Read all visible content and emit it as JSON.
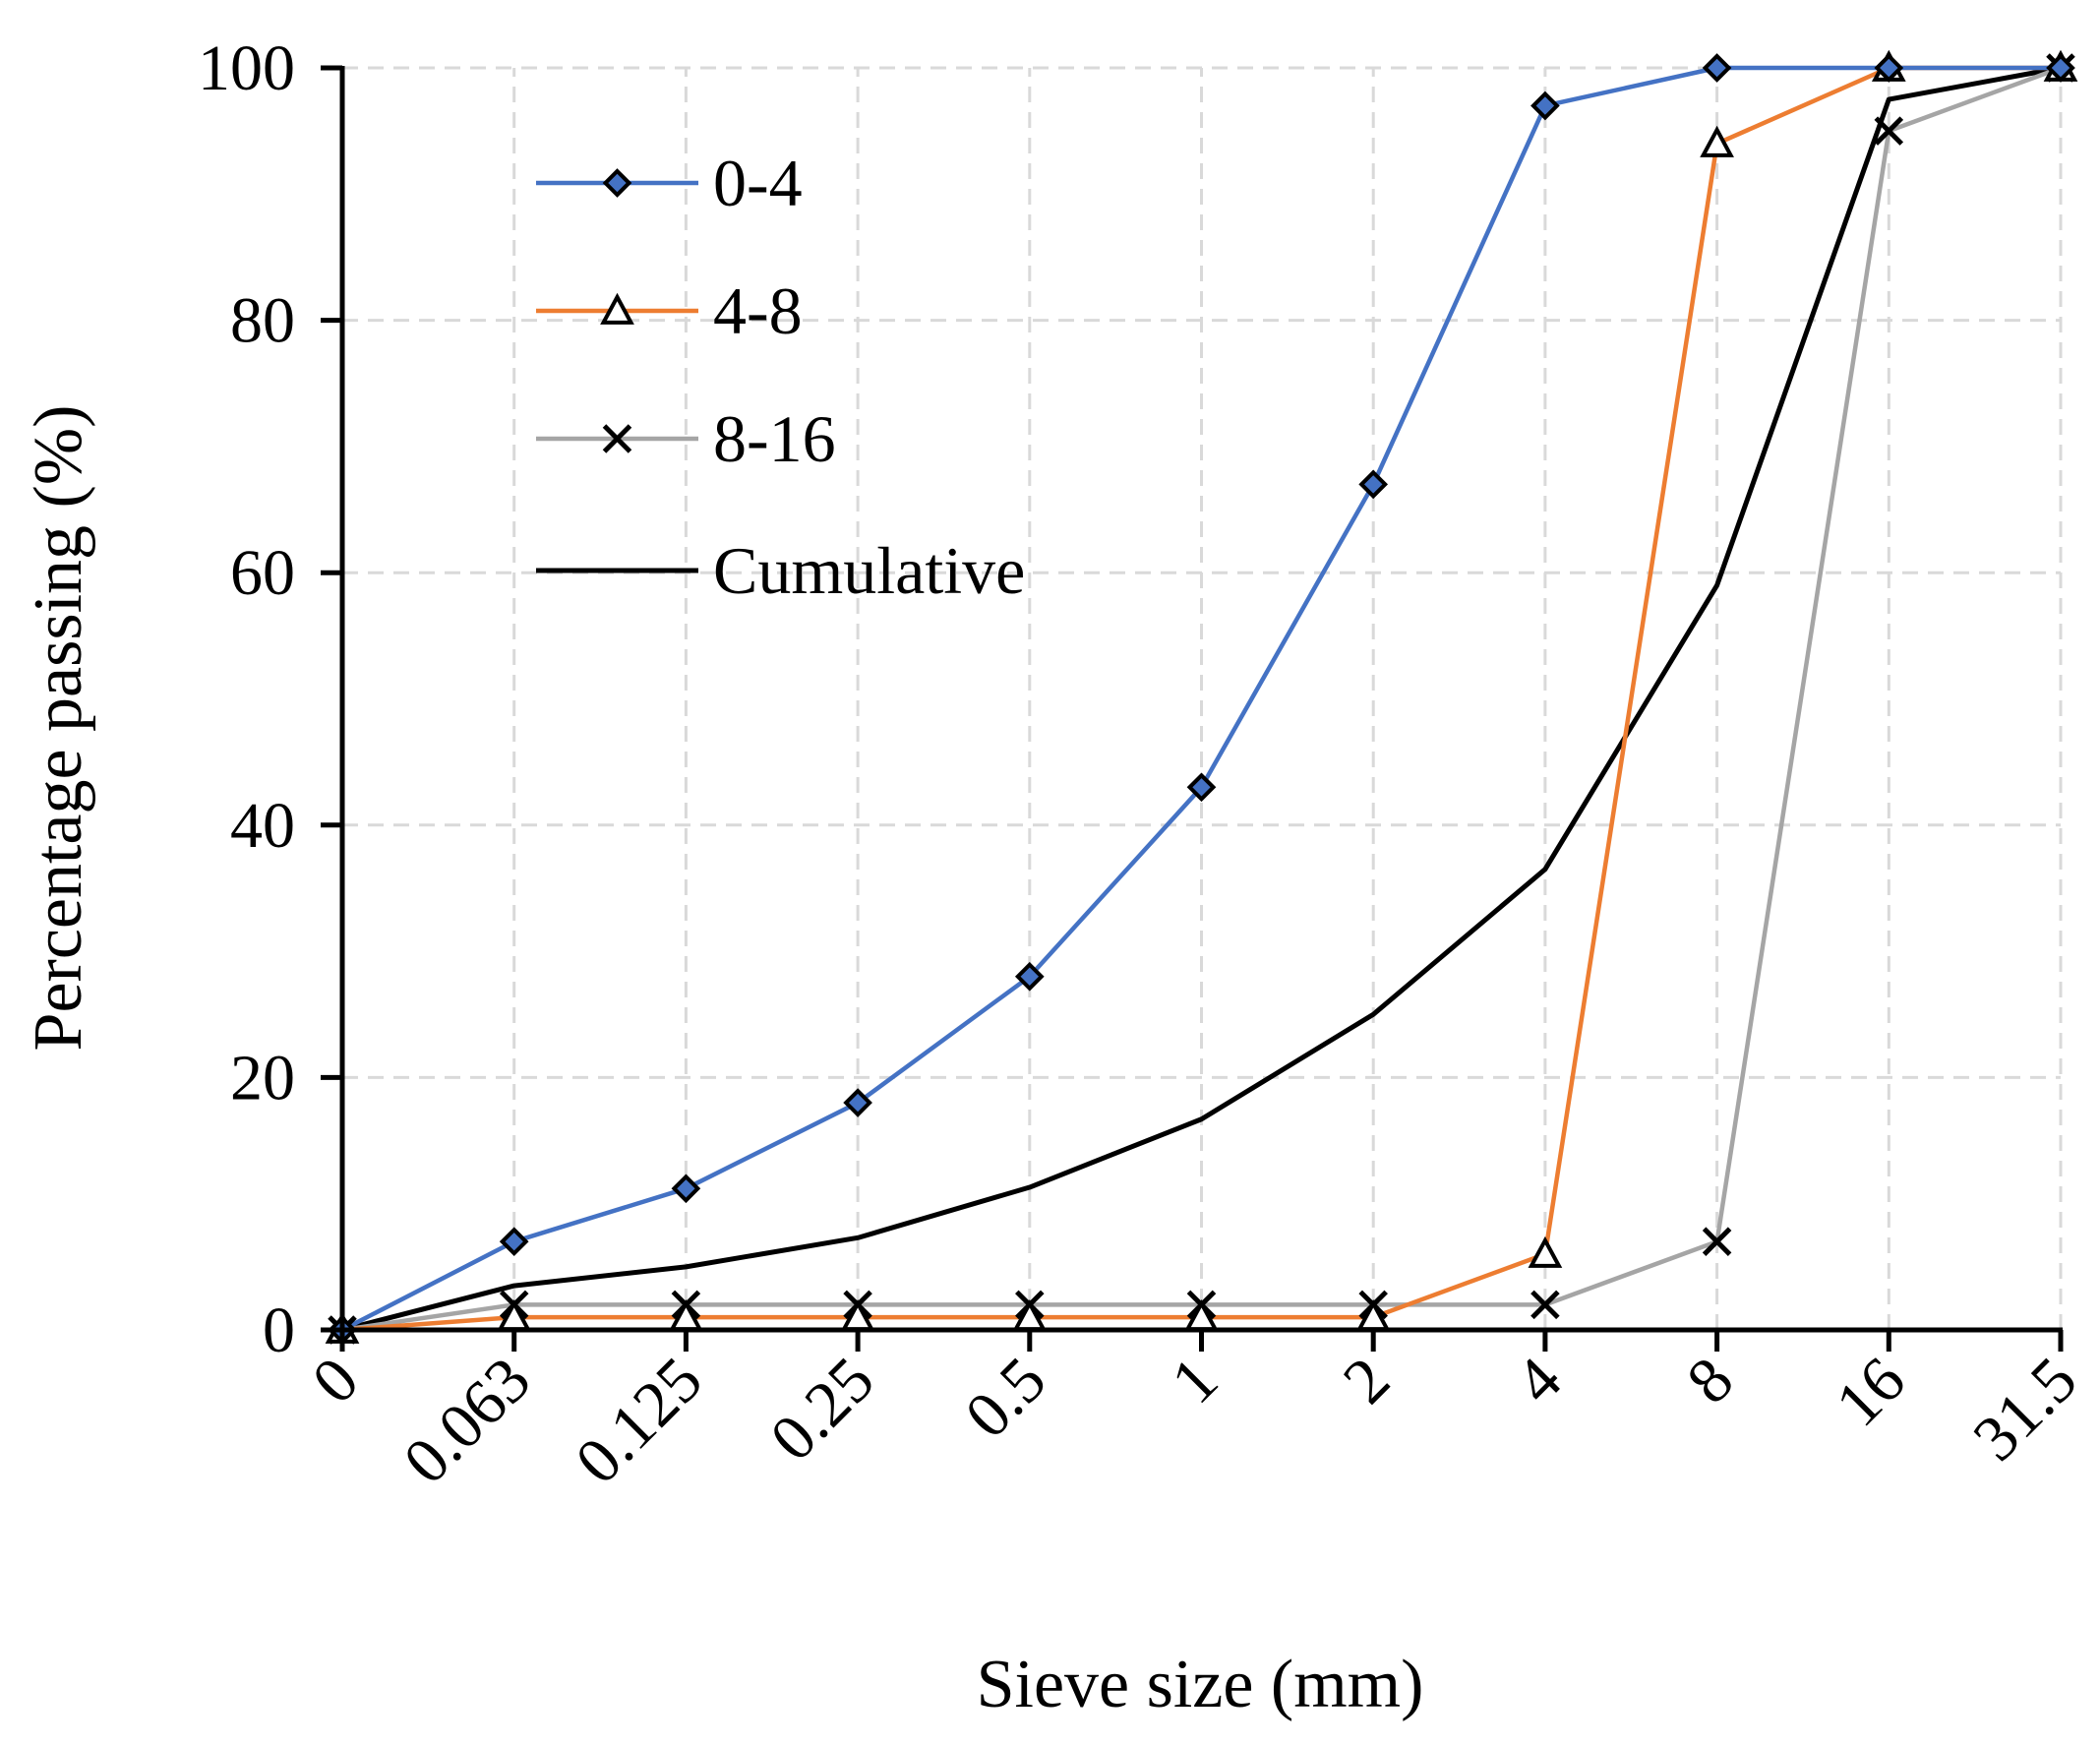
{
  "chart_data": {
    "type": "line",
    "title": "",
    "xlabel": "Sieve size (mm)",
    "ylabel": "Percentage passing (%)",
    "categories": [
      "0",
      "0.063",
      "0.125",
      "0.25",
      "0.5",
      "1",
      "2",
      "4",
      "8",
      "16",
      "31.5"
    ],
    "ylim": [
      0,
      100
    ],
    "yticks": [
      "0",
      "20",
      "40",
      "60",
      "80",
      "100"
    ],
    "grid": true,
    "legend_position": "top-left",
    "series": [
      {
        "name": "0-4",
        "color": "#4472C4",
        "marker": "diamond",
        "values": [
          0,
          7,
          11.2,
          18,
          28,
          43,
          67,
          97,
          100,
          100,
          100
        ]
      },
      {
        "name": "4-8",
        "color": "#ED7D31",
        "marker": "triangle",
        "values": [
          0,
          1,
          1,
          1,
          1,
          1,
          1,
          6,
          94,
          100,
          100
        ]
      },
      {
        "name": "8-16",
        "color": "#A5A5A5",
        "marker": "x",
        "values": [
          0,
          2,
          2,
          2,
          2,
          2,
          2,
          2,
          7,
          95,
          100
        ]
      },
      {
        "name": "Cumulative",
        "color": "#000000",
        "marker": "none",
        "values": [
          0,
          3.5,
          5,
          7.3,
          11.3,
          16.7,
          25,
          36.5,
          59,
          97.5,
          100
        ]
      }
    ]
  }
}
